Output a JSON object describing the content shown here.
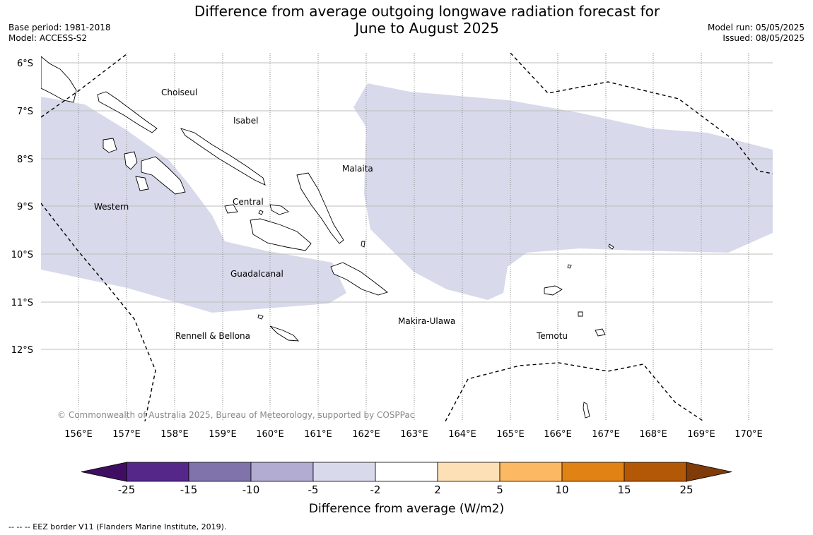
{
  "title_line1": "Difference from average outgoing longwave radiation forecast for",
  "title_line2": "June to August 2025",
  "meta_left": [
    "Base period: 1981-2018",
    "Model: ACCESS-S2"
  ],
  "meta_right": [
    "Model run: 05/05/2025",
    "Issued: 08/05/2025"
  ],
  "lat_labels": [
    "6°S",
    "7°S",
    "8°S",
    "9°S",
    "10°S",
    "11°S",
    "12°S"
  ],
  "lon_labels": [
    "156°E",
    "157°E",
    "158°E",
    "159°E",
    "160°E",
    "161°E",
    "162°E",
    "163°E",
    "164°E",
    "165°E",
    "166°E",
    "167°E",
    "168°E",
    "169°E",
    "170°E"
  ],
  "regions": [
    {
      "name": "Choiseul"
    },
    {
      "name": "Isabel"
    },
    {
      "name": "Malaita"
    },
    {
      "name": "Western"
    },
    {
      "name": "Central"
    },
    {
      "name": "Guadalcanal"
    },
    {
      "name": "Makira-Ulawa"
    },
    {
      "name": "Rennell & Bellona"
    },
    {
      "name": "Temotu"
    }
  ],
  "copyright": "© Commonwealth of Australia 2025, Bureau of Meteorology, supported by COSPPac",
  "colorbar": {
    "title": "Difference from average (W/m2)",
    "ticks": [
      "-25",
      "-15",
      "-10",
      "-5",
      "-2",
      "2",
      "5",
      "10",
      "15",
      "25"
    ],
    "colors": [
      "#3f0e63",
      "#542788",
      "#8073ac",
      "#b2abd2",
      "#d8daeb",
      "#ffffff",
      "#fee0b6",
      "#fdb863",
      "#e08214",
      "#b35806",
      "#7f3b08"
    ]
  },
  "footnote": "--  --  -- EEZ border V11 (Flanders Marine Institute, 2019)."
}
